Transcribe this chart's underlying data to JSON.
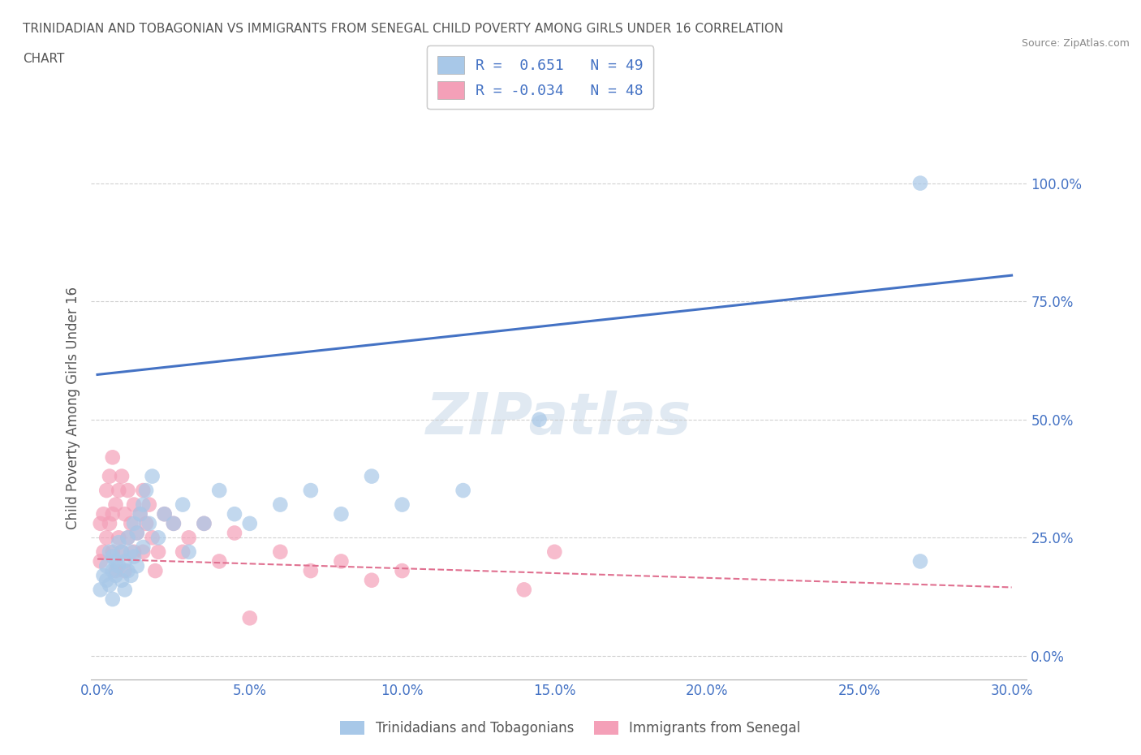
{
  "title_line1": "TRINIDADIAN AND TOBAGONIAN VS IMMIGRANTS FROM SENEGAL CHILD POVERTY AMONG GIRLS UNDER 16 CORRELATION",
  "title_line2": "CHART",
  "source": "Source: ZipAtlas.com",
  "ylabel": "Child Poverty Among Girls Under 16",
  "xlim": [
    -0.002,
    0.305
  ],
  "ylim": [
    -0.05,
    1.1
  ],
  "xticks": [
    0.0,
    0.05,
    0.1,
    0.15,
    0.2,
    0.25,
    0.3
  ],
  "xticklabels": [
    "0.0%",
    "5.0%",
    "10.0%",
    "15.0%",
    "20.0%",
    "25.0%",
    "30.0%"
  ],
  "yticks": [
    0.0,
    0.25,
    0.5,
    0.75,
    1.0
  ],
  "yticklabels": [
    "0.0%",
    "25.0%",
    "50.0%",
    "75.0%",
    "100.0%"
  ],
  "blue_color": "#a8c8e8",
  "pink_color": "#f4a0b8",
  "blue_line_color": "#4472c4",
  "pink_line_color": "#e07090",
  "R_blue": 0.651,
  "N_blue": 49,
  "R_pink": -0.034,
  "N_pink": 48,
  "legend_label_blue": "Trinidadians and Tobagonians",
  "legend_label_pink": "Immigrants from Senegal",
  "watermark": "ZIPatlas",
  "background_color": "#ffffff",
  "grid_color": "#cccccc",
  "title_color": "#555555",
  "axis_label_color": "#555555",
  "tick_color": "#4472c4",
  "blue_line_x0": 0.0,
  "blue_line_y0": 0.595,
  "blue_line_x1": 0.3,
  "blue_line_y1": 0.805,
  "pink_line_x0": 0.0,
  "pink_line_y0": 0.205,
  "pink_line_x1": 0.3,
  "pink_line_y1": 0.145,
  "blue_scatter_x": [
    0.001,
    0.002,
    0.003,
    0.003,
    0.004,
    0.004,
    0.005,
    0.005,
    0.005,
    0.006,
    0.006,
    0.007,
    0.007,
    0.008,
    0.008,
    0.009,
    0.009,
    0.01,
    0.01,
    0.011,
    0.011,
    0.012,
    0.012,
    0.013,
    0.013,
    0.014,
    0.015,
    0.015,
    0.016,
    0.017,
    0.018,
    0.02,
    0.022,
    0.025,
    0.028,
    0.03,
    0.035,
    0.04,
    0.045,
    0.05,
    0.06,
    0.07,
    0.08,
    0.09,
    0.1,
    0.12,
    0.145,
    0.27,
    0.27
  ],
  "blue_scatter_y": [
    0.14,
    0.17,
    0.19,
    0.16,
    0.22,
    0.15,
    0.18,
    0.21,
    0.12,
    0.2,
    0.17,
    0.24,
    0.19,
    0.22,
    0.16,
    0.2,
    0.14,
    0.25,
    0.18,
    0.22,
    0.17,
    0.28,
    0.21,
    0.26,
    0.19,
    0.3,
    0.32,
    0.23,
    0.35,
    0.28,
    0.38,
    0.25,
    0.3,
    0.28,
    0.32,
    0.22,
    0.28,
    0.35,
    0.3,
    0.28,
    0.32,
    0.35,
    0.3,
    0.38,
    0.32,
    0.35,
    0.5,
    0.2,
    1.0
  ],
  "pink_scatter_x": [
    0.001,
    0.001,
    0.002,
    0.002,
    0.003,
    0.003,
    0.004,
    0.004,
    0.005,
    0.005,
    0.005,
    0.006,
    0.006,
    0.007,
    0.007,
    0.008,
    0.008,
    0.009,
    0.009,
    0.01,
    0.01,
    0.011,
    0.012,
    0.012,
    0.013,
    0.014,
    0.015,
    0.015,
    0.016,
    0.017,
    0.018,
    0.019,
    0.02,
    0.022,
    0.025,
    0.028,
    0.03,
    0.035,
    0.04,
    0.045,
    0.05,
    0.06,
    0.07,
    0.08,
    0.09,
    0.1,
    0.14,
    0.15
  ],
  "pink_scatter_y": [
    0.2,
    0.28,
    0.22,
    0.3,
    0.25,
    0.35,
    0.28,
    0.38,
    0.3,
    0.22,
    0.42,
    0.32,
    0.18,
    0.35,
    0.25,
    0.38,
    0.22,
    0.3,
    0.18,
    0.35,
    0.25,
    0.28,
    0.22,
    0.32,
    0.26,
    0.3,
    0.35,
    0.22,
    0.28,
    0.32,
    0.25,
    0.18,
    0.22,
    0.3,
    0.28,
    0.22,
    0.25,
    0.28,
    0.2,
    0.26,
    0.08,
    0.22,
    0.18,
    0.2,
    0.16,
    0.18,
    0.14,
    0.22
  ]
}
